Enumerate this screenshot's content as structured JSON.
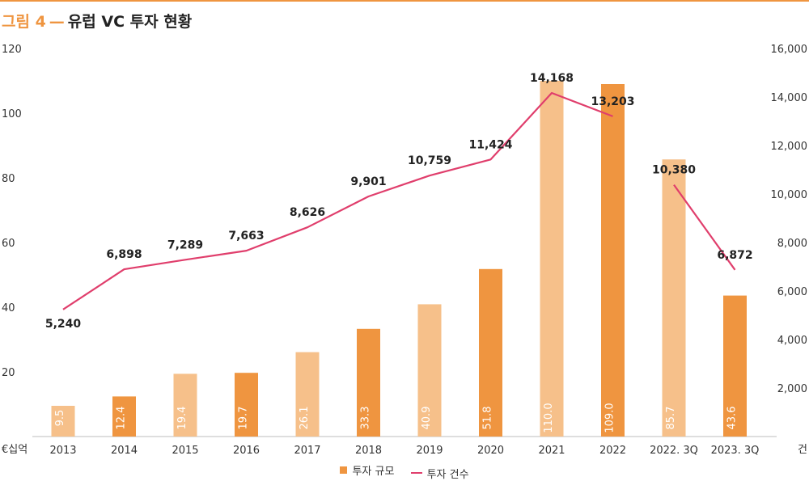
{
  "title": {
    "figure_label": "그림 4",
    "separator": "—",
    "text": "유럽 VC 투자 현황"
  },
  "colors": {
    "accent": "#ef9540",
    "bar_dark": "#ef9540",
    "bar_light": "#f6c08a",
    "line": "#e03e6c"
  },
  "chart_data": {
    "type": "bar",
    "categories": [
      "2013",
      "2014",
      "2015",
      "2016",
      "2017",
      "2018",
      "2019",
      "2020",
      "2021",
      "2022",
      "2022. 3Q",
      "2023. 3Q"
    ],
    "series": [
      {
        "name": "투자 규모",
        "type": "bar",
        "axis": "left",
        "values": [
          9.5,
          12.4,
          19.4,
          19.7,
          26.1,
          33.3,
          40.9,
          51.8,
          110.0,
          109.0,
          85.7,
          43.6
        ],
        "value_labels": [
          "9.5",
          "12.4",
          "19.4",
          "19.7",
          "26.1",
          "33.3",
          "40.9",
          "51.8",
          "110.0",
          "109.0",
          "85.7",
          "43.6"
        ],
        "bar_shades": [
          "light",
          "dark",
          "light",
          "dark",
          "light",
          "dark",
          "light",
          "dark",
          "light",
          "dark",
          "light",
          "dark"
        ]
      },
      {
        "name": "투자 건수",
        "type": "line",
        "axis": "right",
        "values": [
          5240,
          6898,
          7289,
          7663,
          8626,
          9901,
          10759,
          11424,
          14168,
          13203,
          10380,
          6872
        ],
        "value_labels": [
          "5,240",
          "6,898",
          "7,289",
          "7,663",
          "8,626",
          "9,901",
          "10,759",
          "11,424",
          "14,168",
          "13,203",
          "10,380",
          "6,872"
        ],
        "segments": [
          [
            0,
            9
          ],
          [
            10,
            11
          ]
        ]
      }
    ],
    "y_left": {
      "unit": "€십억",
      "ticks": [
        20,
        40,
        60,
        80,
        100,
        120
      ],
      "tick_labels": [
        "20",
        "40",
        "60",
        "80",
        "100",
        "120"
      ],
      "ylim": [
        0,
        120
      ]
    },
    "y_right": {
      "unit": "건",
      "ticks": [
        2000,
        4000,
        6000,
        8000,
        10000,
        12000,
        14000,
        16000
      ],
      "tick_labels": [
        "2,000",
        "4,000",
        "6,000",
        "8,000",
        "10,000",
        "12,000",
        "14,000",
        "16,000"
      ],
      "ylim": [
        0,
        16000
      ]
    },
    "legend": {
      "position": "bottom-center"
    },
    "grid": false
  }
}
